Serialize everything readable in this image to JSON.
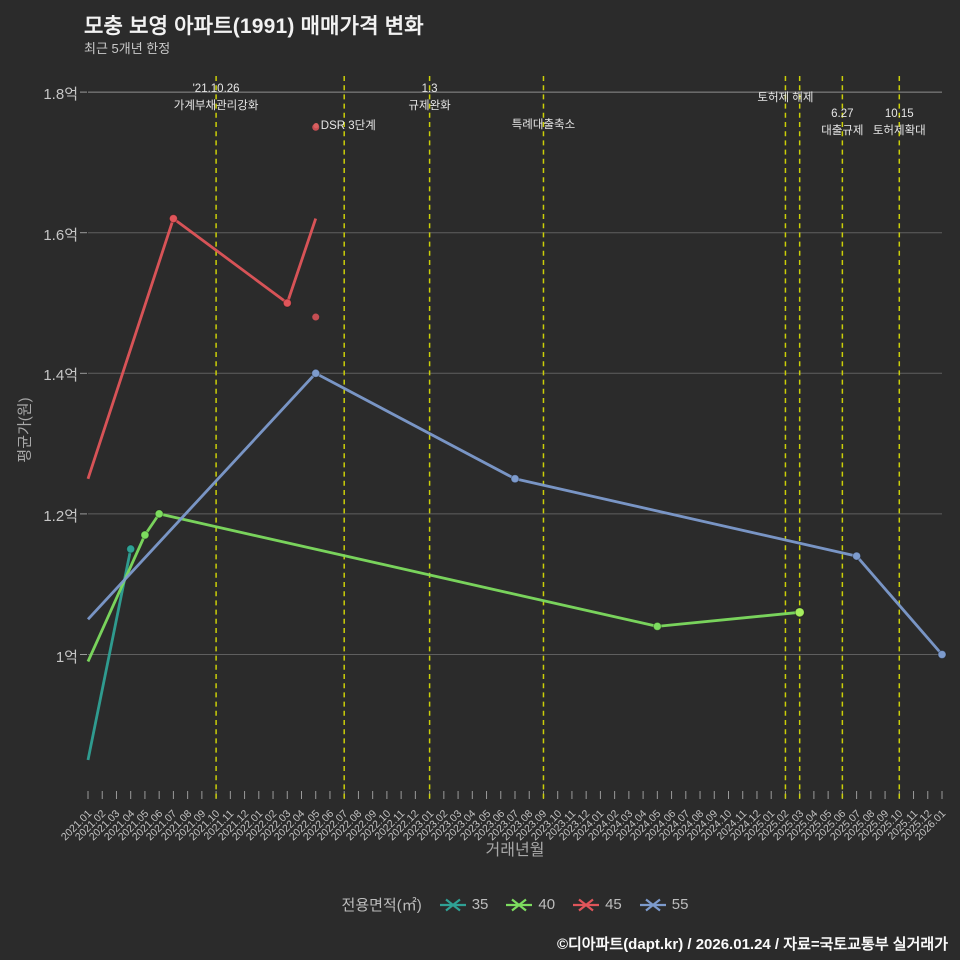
{
  "title": "모충 보영 아파트(1991) 매매가격 변화",
  "subtitle": "최근 5개년 한정",
  "x_axis_title": "거래년월",
  "y_axis_title": "평균가(원)",
  "footer": "©디아파트(dapt.kr) / 2026.01.24 / 자료=국토교통부 실거래가",
  "legend": {
    "label": "전용면적(㎡)",
    "items": [
      {
        "name": "35",
        "color": "#2fa195"
      },
      {
        "name": "40",
        "color": "#7ddc5f"
      },
      {
        "name": "45",
        "color": "#e0555a"
      },
      {
        "name": "55",
        "color": "#7d9bcd"
      }
    ]
  },
  "chart_data": {
    "type": "line",
    "title": "모충 보영 아파트(1991) 매매가격 변화",
    "xlabel": "거래년월",
    "ylabel": "평균가(원)",
    "unit": "억",
    "ylim": [
      0.81,
      1.82
    ],
    "grid": true,
    "legend_position": "bottom-center",
    "x_ticks": [
      "2021.01",
      "2021.02",
      "2021.03",
      "2021.04",
      "2021.05",
      "2021.06",
      "2021.07",
      "2021.08",
      "2021.09",
      "2021.10",
      "2021.11",
      "2021.12",
      "2022.01",
      "2022.02",
      "2022.03",
      "2022.04",
      "2022.05",
      "2022.06",
      "2022.07",
      "2022.08",
      "2022.09",
      "2022.10",
      "2022.11",
      "2022.12",
      "2023.01",
      "2023.02",
      "2023.03",
      "2023.04",
      "2023.05",
      "2023.06",
      "2023.07",
      "2023.08",
      "2023.09",
      "2023.10",
      "2023.11",
      "2023.12",
      "2024.01",
      "2024.02",
      "2024.03",
      "2024.04",
      "2024.05",
      "2024.06",
      "2024.07",
      "2024.08",
      "2024.09",
      "2024.10",
      "2024.11",
      "2024.12",
      "2025.01",
      "2025.02",
      "2025.03",
      "2025.04",
      "2025.05",
      "2025.06",
      "2025.07",
      "2025.08",
      "2025.09",
      "2025.10",
      "2025.11",
      "2025.12",
      "2026.01"
    ],
    "y_ticks": [
      {
        "label": "1억",
        "value": 1.0
      },
      {
        "label": "1.2억",
        "value": 1.2
      },
      {
        "label": "1.4억",
        "value": 1.4
      },
      {
        "label": "1.6억",
        "value": 1.6
      },
      {
        "label": "1.8억",
        "value": 1.8
      }
    ],
    "series": [
      {
        "name": "35",
        "color": "#2fa195",
        "points": [
          [
            "2021.01",
            0.85,
            0
          ],
          [
            "2021.04",
            1.15,
            1
          ]
        ]
      },
      {
        "name": "40",
        "color": "#7ddc5f",
        "highlight_color": "#a6ee5f",
        "points": [
          [
            "2021.01",
            0.99,
            0
          ],
          [
            "2021.05",
            1.17,
            1
          ],
          [
            "2021.06",
            1.2,
            1
          ],
          [
            "2024.05",
            1.04,
            1
          ],
          [
            "2025.03",
            1.06,
            2
          ]
        ]
      },
      {
        "name": "45",
        "color": "#e0555a",
        "points": [
          [
            "2021.01",
            1.25,
            0
          ],
          [
            "2021.07",
            1.62,
            1
          ],
          [
            "2022.03",
            1.5,
            1
          ],
          [
            "2022.05",
            1.62,
            0
          ]
        ],
        "isolated_points": [
          [
            "2022.05",
            1.48
          ],
          [
            "2022.05",
            1.75
          ]
        ]
      },
      {
        "name": "55",
        "color": "#7d9bcd",
        "points": [
          [
            "2021.01",
            1.05,
            0
          ],
          [
            "2022.05",
            1.4,
            1
          ],
          [
            "2023.07",
            1.25,
            1
          ],
          [
            "2025.07",
            1.14,
            1
          ],
          [
            "2026.01",
            1.0,
            1
          ]
        ]
      }
    ],
    "events": [
      {
        "month": "2021.10",
        "lines": [
          "'21.10.26",
          "가계부채관리강화"
        ],
        "top": 81,
        "dot": false
      },
      {
        "month": "2022.07",
        "lines": [
          "DSR 3단계"
        ],
        "top": 117,
        "dot": true
      },
      {
        "month": "2023.01",
        "lines": [
          "1.3",
          "규제완화"
        ],
        "top": 81,
        "dot": false
      },
      {
        "month": "2023.09",
        "lines": [
          "특례대출축소"
        ],
        "top": 117,
        "dot": false
      },
      {
        "month": "2025.02",
        "lines": [
          "토허제 해제"
        ],
        "top": 90,
        "dot": false
      },
      {
        "month": "2025.03",
        "lines": [],
        "top": 0,
        "dot": false
      },
      {
        "month": "2025.06",
        "lines": [
          "6.27",
          "대출규제"
        ],
        "top": 106,
        "dot": false
      },
      {
        "month": "2025.10",
        "lines": [
          "10.15",
          "토허제확대"
        ],
        "top": 106,
        "dot": false
      }
    ],
    "event_line_color": "#cbcf08",
    "gridline_color": "#5f5f5f",
    "top_gridline_color": "#8f8f8f"
  }
}
